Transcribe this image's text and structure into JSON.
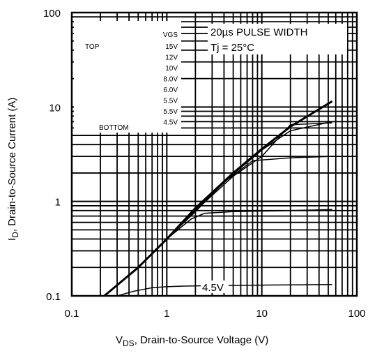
{
  "chart_data": {
    "type": "line",
    "x_scale": "log",
    "y_scale": "log",
    "xlim": [
      0.1,
      100
    ],
    "ylim": [
      0.1,
      100
    ],
    "x_ticks": [
      "0.1",
      "1",
      "10",
      "100"
    ],
    "y_ticks": [
      "0.1",
      "1",
      "10",
      "100"
    ],
    "xlabel_main": "V",
    "xlabel_sub": "DS",
    "xlabel_rest": ", Drain-to-Source Voltage (V)",
    "ylabel_main": "I",
    "ylabel_sub": "D",
    "ylabel_rest": ", Drain-to-Source Current (A)",
    "grid": true,
    "legend": {
      "placement": "top-left",
      "header": "VGS",
      "top_label": "TOP",
      "bottom_label": "BOTTOM",
      "entries": [
        "15V",
        "12V",
        "10V",
        "8.0V",
        "6.0V",
        "5.5V",
        "5.5V",
        "4.5V"
      ]
    },
    "notes": [
      "20µs PULSE WIDTH",
      "Tj = 25°C"
    ],
    "curve_label": "4.5V",
    "series": [
      {
        "x": [
          0.22,
          0.5,
          1,
          2,
          5,
          10,
          20,
          55
        ],
        "y": [
          0.1,
          0.2,
          0.4,
          0.85,
          2.0,
          3.6,
          6.2,
          11.5
        ],
        "width": 3
      },
      {
        "x": [
          0.22,
          0.5,
          1,
          2,
          5,
          10,
          20,
          55
        ],
        "y": [
          0.1,
          0.2,
          0.4,
          0.82,
          1.95,
          3.5,
          5.6,
          7.0
        ],
        "width": 1.5
      },
      {
        "x": [
          0.22,
          0.5,
          1,
          2,
          5,
          10,
          20,
          55
        ],
        "y": [
          0.1,
          0.2,
          0.4,
          0.8,
          1.85,
          3.0,
          6.5,
          6.8
        ],
        "width": 1.5
      },
      {
        "x": [
          0.22,
          0.5,
          1,
          2,
          4,
          8,
          20,
          55
        ],
        "y": [
          0.1,
          0.2,
          0.4,
          0.78,
          1.6,
          2.7,
          2.9,
          3.0
        ],
        "width": 1.5
      },
      {
        "x": [
          0.22,
          0.5,
          1,
          1.8,
          2.5,
          5,
          20,
          55
        ],
        "y": [
          0.1,
          0.2,
          0.4,
          0.65,
          0.75,
          0.78,
          0.8,
          0.82
        ],
        "width": 1.5
      },
      {
        "x": [
          0.3,
          0.45,
          0.7,
          1,
          1.5,
          2.5,
          10,
          55
        ],
        "y": [
          0.1,
          0.112,
          0.122,
          0.125,
          0.127,
          0.128,
          0.13,
          0.132
        ],
        "width": 1.5
      }
    ]
  }
}
